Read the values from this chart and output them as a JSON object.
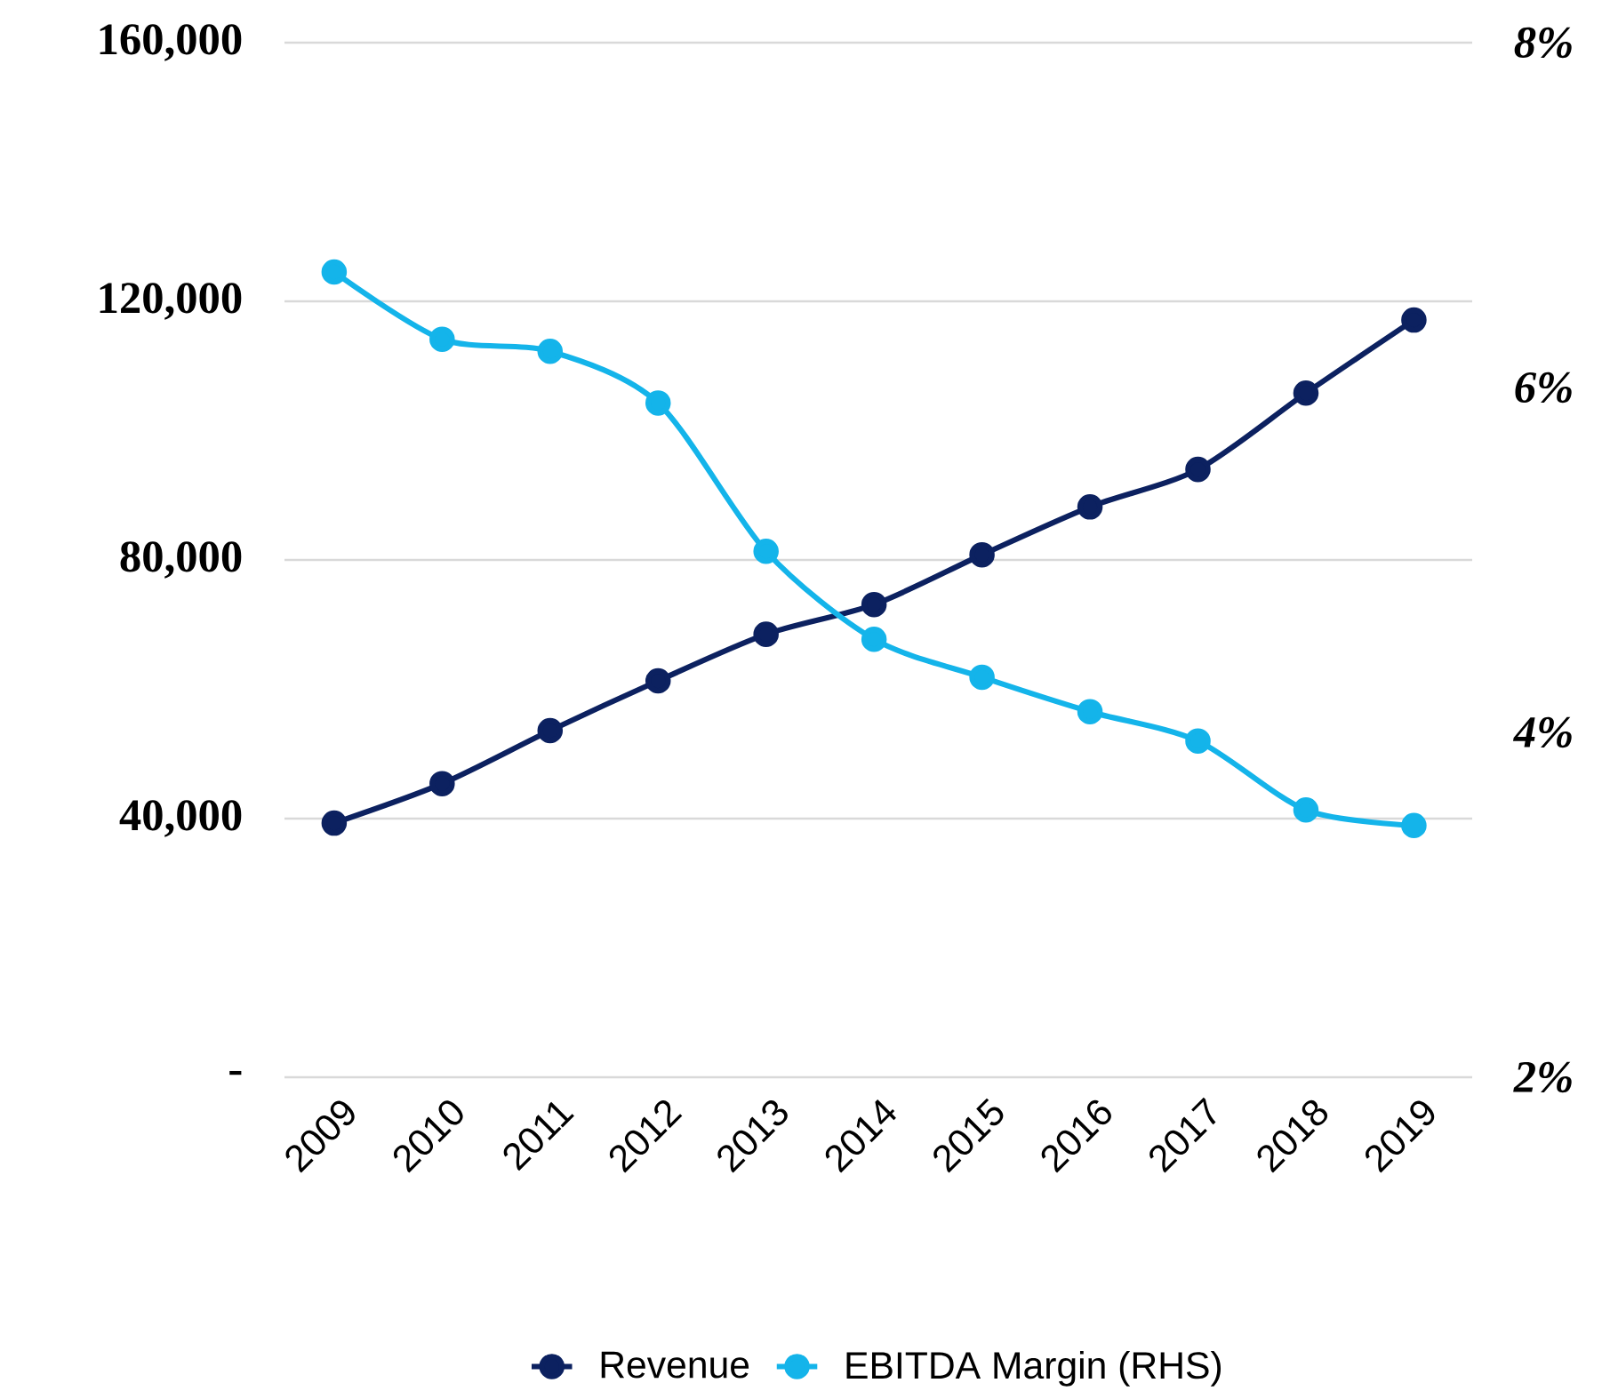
{
  "chart_data": {
    "type": "line",
    "categories": [
      "2009",
      "2010",
      "2011",
      "2012",
      "2013",
      "2014",
      "2015",
      "2016",
      "2017",
      "2018",
      "2019"
    ],
    "series": [
      {
        "name": "Revenue",
        "color": "#0c2160",
        "values": [
          39300,
          45400,
          53600,
          61300,
          68500,
          73100,
          80800,
          88200,
          94000,
          105800,
          117100
        ]
      },
      {
        "name": "EBITDA Margin (RHS)",
        "color": "#14b4ea",
        "axis": "y2",
        "values": [
          6.67,
          6.28,
          6.21,
          5.91,
          5.05,
          4.54,
          4.32,
          4.12,
          3.95,
          3.55,
          3.46
        ]
      }
    ],
    "ylim": [
      0,
      160000
    ],
    "yticks": [
      {
        "value": 0,
        "label": "-"
      },
      {
        "value": 40000,
        "label": "40,000"
      },
      {
        "value": 80000,
        "label": "80,000"
      },
      {
        "value": 120000,
        "label": "120,000"
      },
      {
        "value": 160000,
        "label": "160,000"
      }
    ],
    "y2lim": [
      2,
      8
    ],
    "y2ticks": [
      {
        "value": 2,
        "label": "2%"
      },
      {
        "value": 4,
        "label": "4%"
      },
      {
        "value": 6,
        "label": "6%"
      },
      {
        "value": 8,
        "label": "8%"
      }
    ],
    "grid": "y",
    "legend": "bottom",
    "marker": "circle",
    "line_style": "solid"
  }
}
